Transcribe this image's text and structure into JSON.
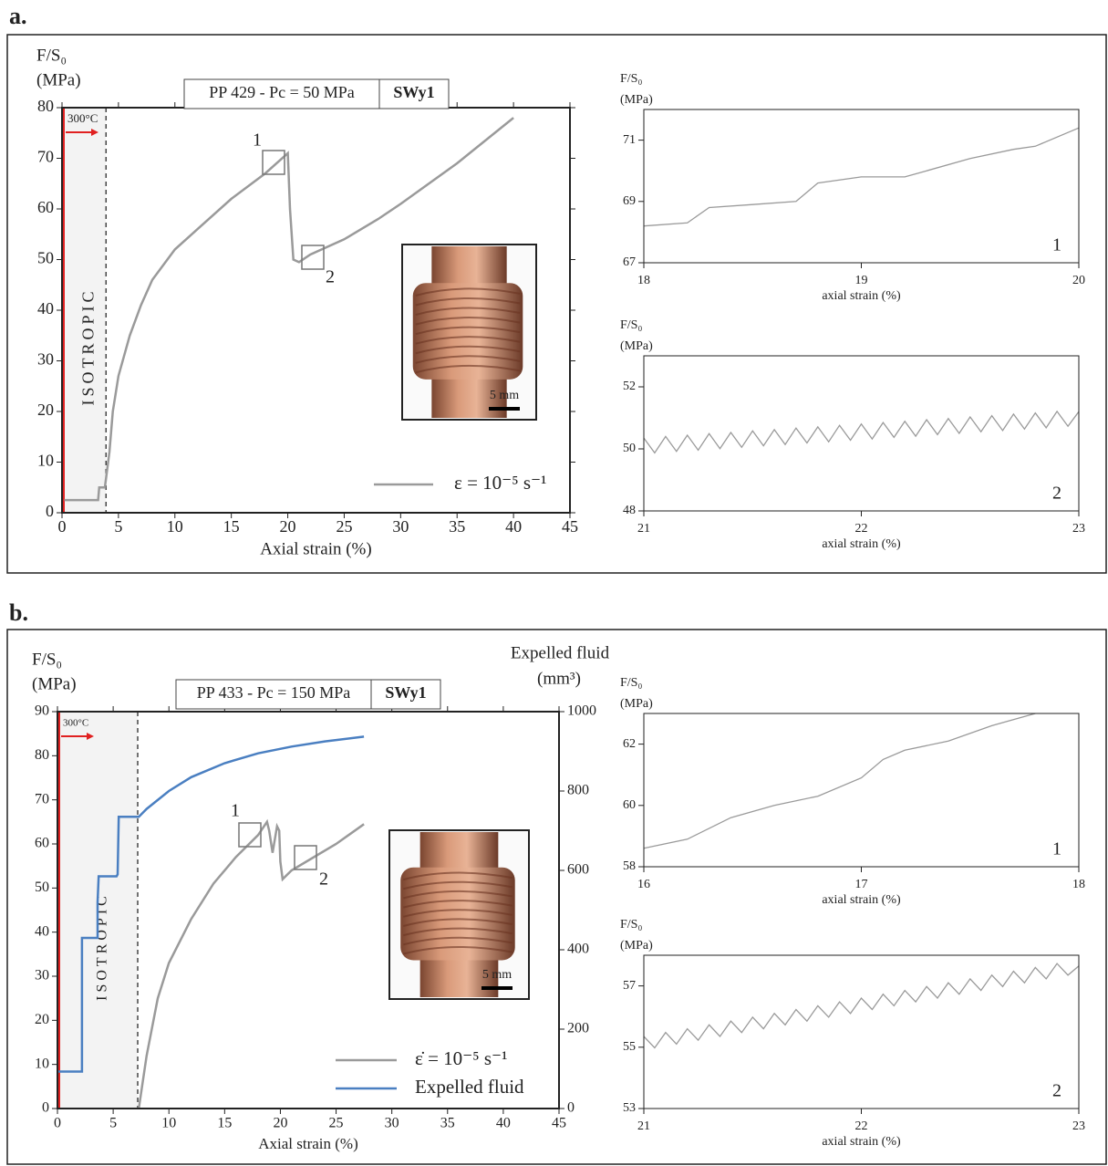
{
  "panel_labels": [
    "a.",
    "b."
  ],
  "chart_data": [
    {
      "type": "line",
      "test_label": "PP 429 - Pc = 50 MPa",
      "material": "SWy1",
      "y_label": [
        "F/S₀",
        "(MPa)"
      ],
      "x_label": "Axial strain (%)",
      "xlim": [
        0,
        45
      ],
      "ylim": [
        0,
        80
      ],
      "xticks": [
        0,
        5,
        10,
        15,
        20,
        25,
        30,
        35,
        40,
        45
      ],
      "yticks": [
        0,
        10,
        20,
        30,
        40,
        50,
        60,
        70,
        80
      ],
      "region": {
        "label": "ISOTROPIC",
        "temperature": "300°C",
        "x": [
          0,
          3.9
        ]
      },
      "annotations": [
        "1",
        "2"
      ],
      "scale_bar": "5 mm",
      "series": [
        {
          "name": "ε = 10⁻⁵ s⁻¹",
          "color": "#9a9a9a",
          "x": [
            0.2,
            3.2,
            3.3,
            3.8,
            4.2,
            4.5,
            5,
            6,
            7,
            8,
            10,
            12,
            15,
            18,
            20,
            20.2,
            20.5,
            21,
            22,
            25,
            28,
            30,
            35,
            40
          ],
          "values": [
            2.5,
            2.5,
            5,
            5,
            12,
            20,
            27,
            35,
            41,
            46,
            52,
            56,
            62,
            67,
            71,
            60,
            50,
            49.5,
            51,
            54,
            58,
            61,
            69,
            78
          ]
        }
      ]
    },
    {
      "type": "line",
      "y_label": [
        "F/S₀",
        "(MPa)"
      ],
      "x_label": "axial strain (%)",
      "xlim": [
        18,
        20
      ],
      "ylim": [
        67,
        72
      ],
      "xticks": [
        18,
        19,
        20
      ],
      "yticks": [
        67,
        69,
        71
      ],
      "annotations": [
        "1"
      ],
      "series": [
        {
          "color": "#9a9a9a",
          "x": [
            18,
            18.2,
            18.3,
            18.5,
            18.7,
            18.8,
            19,
            19.2,
            19.3,
            19.5,
            19.7,
            19.8,
            20
          ],
          "values": [
            68.2,
            68.3,
            68.8,
            68.9,
            69.0,
            69.6,
            69.8,
            69.8,
            70.0,
            70.4,
            70.7,
            70.8,
            71.4
          ]
        }
      ]
    },
    {
      "type": "line",
      "y_label": [
        "F/S₀",
        "(MPa)"
      ],
      "x_label": "axial strain (%)",
      "xlim": [
        21,
        23
      ],
      "ylim": [
        48,
        53
      ],
      "xticks": [
        21,
        22,
        23
      ],
      "yticks": [
        48,
        50,
        52
      ],
      "annotations": [
        "2"
      ],
      "series": [
        {
          "color": "#9a9a9a",
          "x": [
            21,
            21.05,
            21.1,
            21.15,
            21.2,
            21.25,
            21.3,
            21.35,
            21.4,
            21.45,
            21.5,
            21.55,
            21.6,
            21.65,
            21.7,
            21.75,
            21.8,
            21.85,
            21.9,
            21.95,
            22,
            22.05,
            22.1,
            22.15,
            22.2,
            22.25,
            22.3,
            22.35,
            22.4,
            22.45,
            22.5,
            22.55,
            22.6,
            22.65,
            22.7,
            22.75,
            22.8,
            22.85,
            22.9,
            22.95,
            23
          ],
          "values": [
            50.35,
            49.87,
            50.4,
            49.92,
            50.44,
            49.96,
            50.49,
            50.01,
            50.53,
            50.05,
            50.58,
            50.1,
            50.62,
            50.14,
            50.67,
            50.19,
            50.71,
            50.23,
            50.76,
            50.28,
            50.8,
            50.32,
            50.85,
            50.37,
            50.89,
            50.41,
            50.94,
            50.46,
            50.98,
            50.5,
            51.03,
            50.55,
            51.07,
            50.59,
            51.12,
            50.64,
            51.16,
            50.68,
            51.21,
            50.73,
            51.2
          ]
        }
      ]
    },
    {
      "type": "line",
      "test_label": "PP 433 - Pc = 150 MPa",
      "material": "SWy1",
      "y_label": [
        "F/S₀",
        "(MPa)"
      ],
      "y2_label": [
        "Expelled fluid",
        "(mm³)"
      ],
      "x_label": "Axial strain (%)",
      "xlim": [
        0,
        45
      ],
      "ylim": [
        0,
        90
      ],
      "y2lim": [
        0,
        1000
      ],
      "xticks": [
        0,
        5,
        10,
        15,
        20,
        25,
        30,
        35,
        40,
        45
      ],
      "yticks": [
        0,
        10,
        20,
        30,
        40,
        50,
        60,
        70,
        80,
        90
      ],
      "y2ticks": [
        0,
        200,
        400,
        600,
        800,
        1000
      ],
      "region": {
        "label": "ISOTROPIC",
        "temperature": "300°C",
        "x": [
          0,
          7.2
        ]
      },
      "annotations": [
        "1",
        "2"
      ],
      "scale_bar": "5 mm",
      "series": [
        {
          "name": "ε̇ = 10⁻⁵ s⁻¹",
          "color": "#9a9a9a",
          "x": [
            7.3,
            8,
            9,
            10,
            12,
            14,
            16,
            18,
            18.8,
            19,
            19.3,
            19.7,
            19.9,
            20,
            20.2,
            21,
            23,
            25,
            27.5
          ],
          "values": [
            0,
            12,
            25,
            33,
            43,
            51,
            57,
            62,
            65,
            63,
            58,
            64,
            63,
            56,
            52,
            54,
            57,
            60,
            64.5
          ]
        },
        {
          "name": "Expelled fluid",
          "color": "#4a7fc1",
          "axis": "y2",
          "x": [
            0,
            2.2,
            2.2,
            3.6,
            3.6,
            3.7,
            5.3,
            5.4,
            5.5,
            7.3,
            8,
            10,
            12,
            15,
            18,
            21,
            24,
            27.5
          ],
          "values": [
            93,
            93,
            430,
            430,
            520,
            585,
            585,
            590,
            735,
            735,
            755,
            800,
            835,
            870,
            895,
            912,
            925,
            937
          ]
        }
      ]
    },
    {
      "type": "line",
      "y_label": [
        "F/S₀",
        "(MPa)"
      ],
      "x_label": "axial strain (%)",
      "xlim": [
        16,
        18
      ],
      "ylim": [
        58,
        63
      ],
      "xticks": [
        16,
        17,
        18
      ],
      "yticks": [
        58,
        60,
        62
      ],
      "annotations": [
        "1"
      ],
      "series": [
        {
          "color": "#9a9a9a",
          "x": [
            16,
            16.2,
            16.4,
            16.6,
            16.8,
            17,
            17.1,
            17.2,
            17.4,
            17.6,
            17.8
          ],
          "values": [
            58.6,
            58.9,
            59.6,
            60.0,
            60.3,
            60.9,
            61.5,
            61.8,
            62.1,
            62.6,
            63.0
          ]
        }
      ]
    },
    {
      "type": "line",
      "y_label": [
        "F/S₀",
        "(MPa)"
      ],
      "x_label": "axial strain (%)",
      "xlim": [
        21,
        23
      ],
      "ylim": [
        53,
        58
      ],
      "xticks": [
        21,
        22,
        23
      ],
      "yticks": [
        53,
        55,
        57
      ],
      "annotations": [
        "2"
      ],
      "series": [
        {
          "color": "#9a9a9a",
          "x": [
            21,
            21.05,
            21.1,
            21.15,
            21.2,
            21.25,
            21.3,
            21.35,
            21.4,
            21.45,
            21.5,
            21.55,
            21.6,
            21.65,
            21.7,
            21.75,
            21.8,
            21.85,
            21.9,
            21.95,
            22,
            22.05,
            22.1,
            22.15,
            22.2,
            22.25,
            22.3,
            22.35,
            22.4,
            22.45,
            22.5,
            22.55,
            22.6,
            22.65,
            22.7,
            22.75,
            22.8,
            22.85,
            22.9,
            22.95,
            23
          ],
          "values": [
            55.35,
            54.98,
            55.48,
            55.1,
            55.6,
            55.23,
            55.73,
            55.35,
            55.85,
            55.48,
            55.98,
            55.6,
            56.1,
            55.73,
            56.23,
            55.85,
            56.35,
            55.98,
            56.48,
            56.1,
            56.6,
            56.23,
            56.73,
            56.35,
            56.85,
            56.48,
            56.98,
            56.6,
            57.1,
            56.73,
            57.23,
            56.85,
            57.35,
            56.98,
            57.48,
            57.1,
            57.6,
            57.23,
            57.73,
            57.35,
            57.65
          ]
        }
      ]
    }
  ]
}
